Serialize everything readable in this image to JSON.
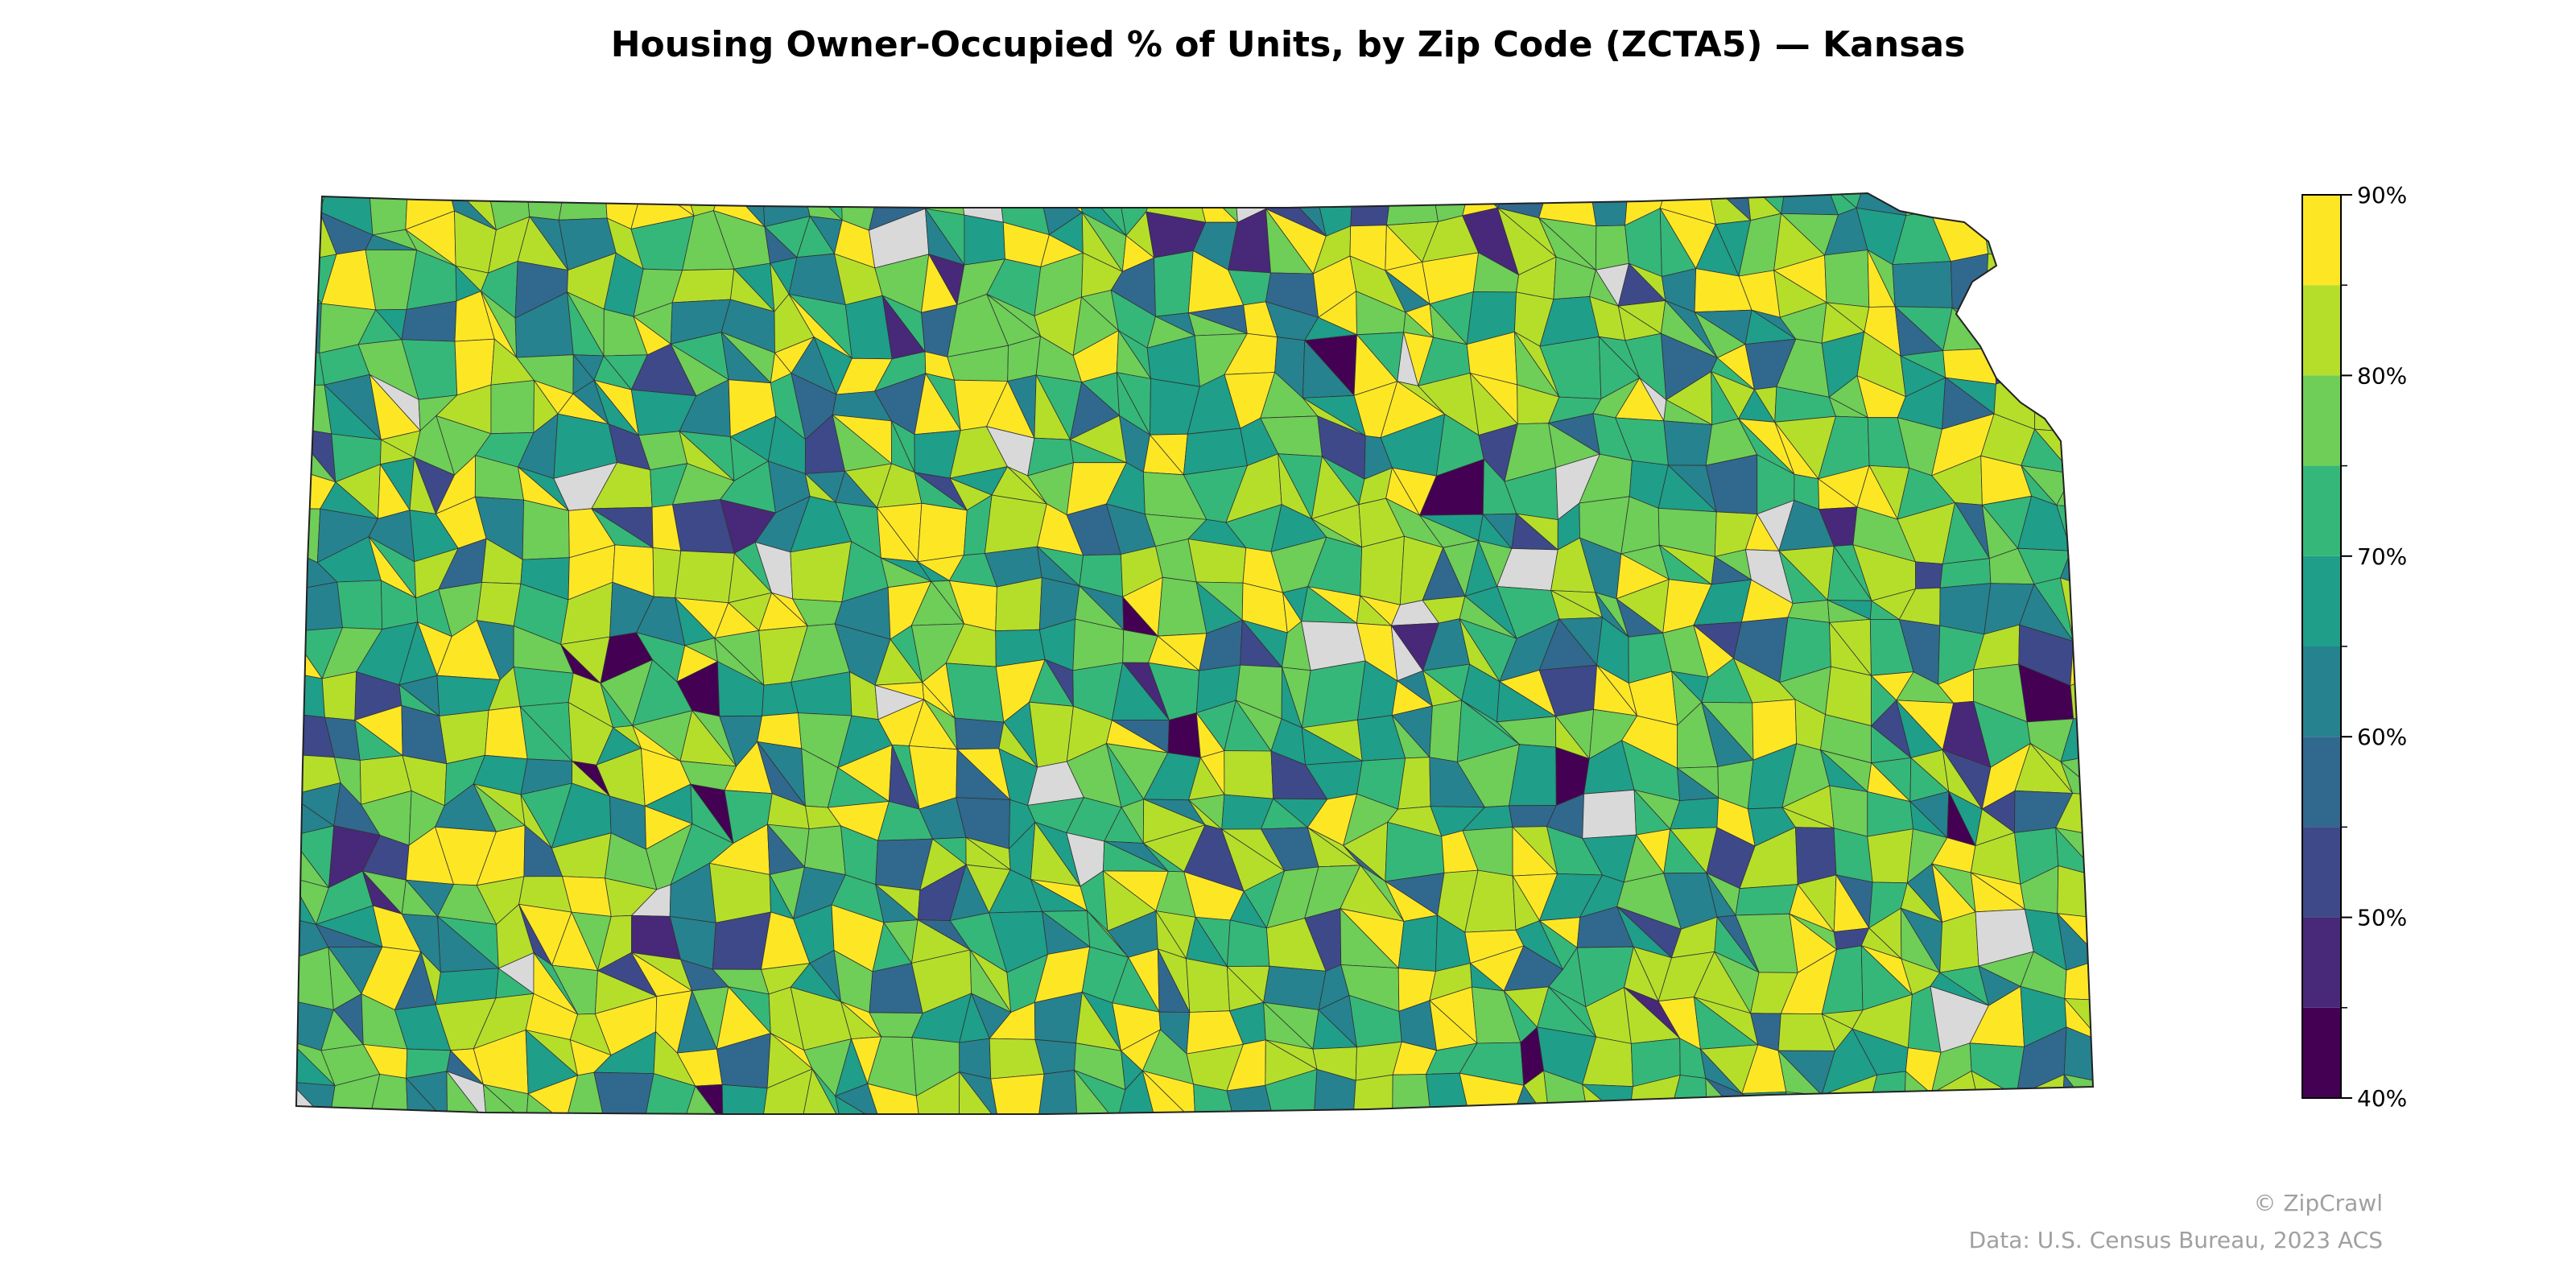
{
  "title": "Housing Owner-Occupied % of Units, by Zip Code (ZCTA5) — Kansas",
  "map": {
    "region": "Kansas",
    "geography": "ZCTA5",
    "metric": "Housing Owner-Occupied % of Units",
    "colormap": "viridis",
    "no_data_color": "#d9d9d9",
    "boundary_color": "#333333"
  },
  "colorbar": {
    "min": 40,
    "max": 90,
    "step": 5,
    "ticks": [
      {
        "value": 90,
        "label": "90%"
      },
      {
        "value": 80,
        "label": "80%"
      },
      {
        "value": 70,
        "label": "70%"
      },
      {
        "value": 60,
        "label": "60%"
      },
      {
        "value": 50,
        "label": "50%"
      },
      {
        "value": 40,
        "label": "40%"
      }
    ],
    "bins": [
      {
        "from": 40,
        "to": 45,
        "color": "#440154"
      },
      {
        "from": 45,
        "to": 50,
        "color": "#482878"
      },
      {
        "from": 50,
        "to": 55,
        "color": "#3e4989"
      },
      {
        "from": 55,
        "to": 60,
        "color": "#31688e"
      },
      {
        "from": 60,
        "to": 65,
        "color": "#26828e"
      },
      {
        "from": 65,
        "to": 70,
        "color": "#1f9e89"
      },
      {
        "from": 70,
        "to": 75,
        "color": "#35b779"
      },
      {
        "from": 75,
        "to": 80,
        "color": "#6ece58"
      },
      {
        "from": 80,
        "to": 85,
        "color": "#b5de2b"
      },
      {
        "from": 85,
        "to": 90,
        "color": "#fde725"
      }
    ]
  },
  "credits": {
    "brand": "© ZipCrawl",
    "source": "Data: U.S. Census Bureau, 2023 ACS"
  }
}
